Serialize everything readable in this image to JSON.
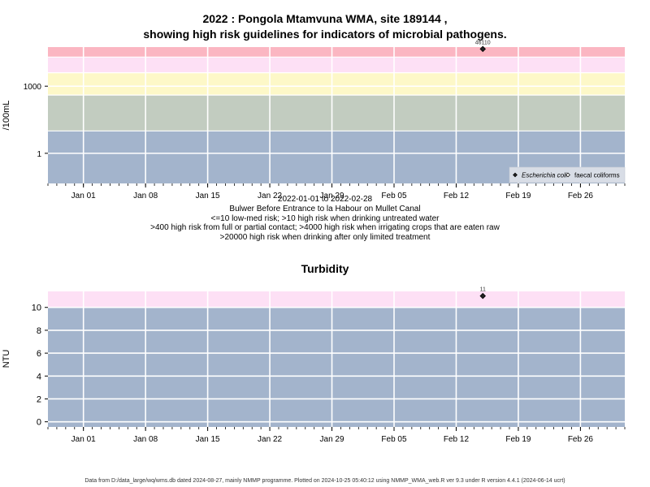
{
  "title": {
    "line1": "2022 : Pongola Mtamvuna WMA, site 189144 ,",
    "line2": "showing high risk guidelines for indicators of microbial pathogens."
  },
  "captions": {
    "date_range": "2022-01-01 to 2022-02-28",
    "site": "Bulwer Before Entrance to la Habour on Mullet Canal",
    "rule1": "<=10 low-med risk; >10 high risk when drinking untreated water",
    "rule2": ">400 high risk from full or partial contact; >4000 high risk when irrigating crops that are eaten raw",
    "rule3": ">20000 high risk when drinking after only limited treatment"
  },
  "footer": "Data from D:/data_large/wq/wms.db dated 2024-08-27, mainly NMMP programme. Plotted on 2024-10-25 05:40:12 using NMMP_WMA_web.R ver 9.3 under R version 4.4.1 (2024-06-14 ucrt)",
  "chart_data": [
    {
      "type": "scatter",
      "title": "",
      "ylabel": "/100mL",
      "xlabel": "",
      "y_scale": "log10",
      "ylim": [
        0.045,
        56000
      ],
      "xlim": [
        "2021-12-28",
        "2022-03-03"
      ],
      "x_ticks": [
        "Jan 01",
        "Jan 08",
        "Jan 15",
        "Jan 22",
        "Jan 29",
        "Feb 05",
        "Feb 12",
        "Feb 19",
        "Feb 26"
      ],
      "x_tick_dates": [
        "2022-01-01",
        "2022-01-08",
        "2022-01-15",
        "2022-01-22",
        "2022-01-29",
        "2022-02-05",
        "2022-02-12",
        "2022-02-19",
        "2022-02-26"
      ],
      "y_ticks": [
        1,
        1000
      ],
      "y_tick_labels": [
        "1",
        "1000"
      ],
      "bands": [
        {
          "from": 0.045,
          "to": 10,
          "color": "#a3b4cc"
        },
        {
          "from": 10,
          "to": 400,
          "color": "#c2ccc0"
        },
        {
          "from": 400,
          "to": 4000,
          "color": "#fdf8c8"
        },
        {
          "from": 4000,
          "to": 20000,
          "color": "#fde0f5"
        },
        {
          "from": 20000,
          "to": 56000,
          "color": "#fbb6c2"
        }
      ],
      "series": [
        {
          "name": "Escherichia coli",
          "points": [
            {
              "x": "2022-02-15",
              "y": 46110
            }
          ],
          "point_labels": [
            "46110"
          ],
          "marker": "filled-diamond"
        },
        {
          "name": "faecal coliforms",
          "points": [],
          "marker": "open-diamond"
        }
      ],
      "legend": "bottom-right",
      "grid": true
    },
    {
      "type": "scatter",
      "title": "Turbidity",
      "ylabel": "NTU",
      "xlabel": "",
      "y_scale": "linear",
      "ylim": [
        -0.45,
        11.4
      ],
      "xlim": [
        "2021-12-28",
        "2022-03-03"
      ],
      "x_ticks": [
        "Jan 01",
        "Jan 08",
        "Jan 15",
        "Jan 22",
        "Jan 29",
        "Feb 05",
        "Feb 12",
        "Feb 19",
        "Feb 26"
      ],
      "x_tick_dates": [
        "2022-01-01",
        "2022-01-08",
        "2022-01-15",
        "2022-01-22",
        "2022-01-29",
        "2022-02-05",
        "2022-02-12",
        "2022-02-19",
        "2022-02-26"
      ],
      "y_ticks": [
        0,
        2,
        4,
        6,
        8,
        10
      ],
      "y_tick_labels": [
        "0",
        "2",
        "4",
        "6",
        "8",
        "10"
      ],
      "bands": [
        {
          "from": -0.45,
          "to": 10,
          "color": "#a3b4cc"
        },
        {
          "from": 10,
          "to": 11.4,
          "color": "#fde0f5"
        }
      ],
      "series": [
        {
          "name": "",
          "points": [
            {
              "x": "2022-02-15",
              "y": 11
            }
          ],
          "point_labels": [
            "11"
          ],
          "marker": "filled-diamond"
        }
      ],
      "grid": true
    }
  ]
}
